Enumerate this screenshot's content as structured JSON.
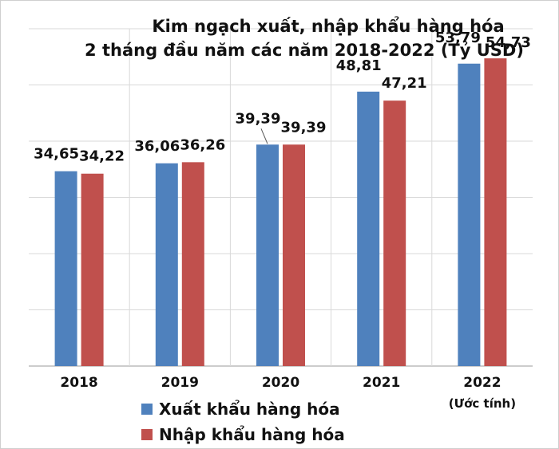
{
  "chart_data": {
    "type": "bar",
    "title": "Kim ngạch xuất, nhập khẩu hàng hóa",
    "subtitle": "2 tháng đầu năm các năm 2018-2022 (Tỷ USD)",
    "categories": [
      "2018",
      "2019",
      "2020",
      "2021",
      "2022"
    ],
    "category_notes": [
      "",
      "",
      "",
      "",
      "(Ước tính)"
    ],
    "series": [
      {
        "name": "Xuất khẩu hàng hóa",
        "color": "#4f81bd",
        "values": [
          34.65,
          36.06,
          39.39,
          48.81,
          53.79
        ],
        "labels": [
          "34,65",
          "36,06",
          "39,39",
          "48,81",
          "53,79"
        ]
      },
      {
        "name": "Nhập khẩu hàng hóa",
        "color": "#c0504d",
        "values": [
          34.22,
          36.26,
          39.39,
          47.21,
          54.73
        ],
        "labels": [
          "34,22",
          "36,26",
          "39,39",
          "47,21",
          "54,73"
        ]
      }
    ],
    "ylim": [
      0,
      60
    ],
    "grid": true,
    "legend_position": "bottom-left"
  }
}
